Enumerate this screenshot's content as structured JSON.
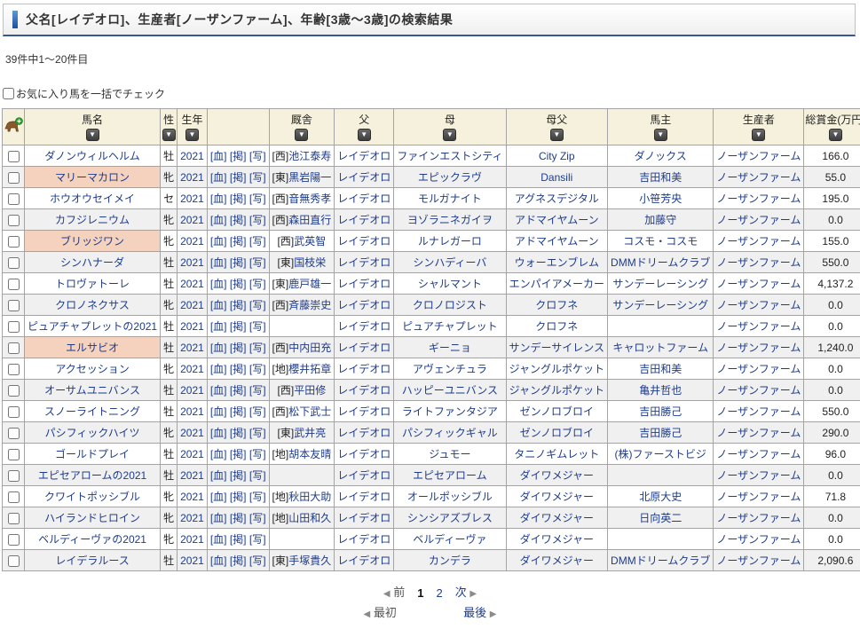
{
  "header": {
    "title": "父名[レイデオロ]、生産者[ノーザンファーム]、年齢[3歳～3歳]の検索結果"
  },
  "summary": {
    "count_text": "39件中1～20件目"
  },
  "bulk_check": {
    "label": "お気に入り馬を一括でチェック"
  },
  "colors": {
    "link_blue": "#1e3c8c",
    "header_cream": "#f5f1dc",
    "favorite_pink": "#f4d2bd",
    "zebra_gray": "#f0f0f0",
    "accent_blue": "#1c4e9e"
  },
  "icons": {
    "add_horse": "horse-with-green-plus-icon",
    "filter": "down-triangle-filter-button"
  },
  "table": {
    "columns": [
      {
        "key": "check",
        "label": "",
        "filter": false
      },
      {
        "key": "name",
        "label": "馬名",
        "filter": true
      },
      {
        "key": "sex",
        "label": "性",
        "filter": true
      },
      {
        "key": "year",
        "label": "生年",
        "filter": true
      },
      {
        "key": "links",
        "label": "",
        "filter": false
      },
      {
        "key": "stable",
        "label": "厩舎",
        "filter": true
      },
      {
        "key": "sire",
        "label": "父",
        "filter": true
      },
      {
        "key": "dam",
        "label": "母",
        "filter": true
      },
      {
        "key": "damsire",
        "label": "母父",
        "filter": true
      },
      {
        "key": "owner",
        "label": "馬主",
        "filter": true
      },
      {
        "key": "breeder",
        "label": "生産者",
        "filter": true
      },
      {
        "key": "prize",
        "label": "総賞金(万円)",
        "filter": true
      }
    ],
    "link_labels": [
      "[血]",
      "[掲]",
      "[写]"
    ],
    "rows": [
      {
        "name": "ダノンウィルヘルム",
        "favorite": false,
        "sex": "牡",
        "year": "2021",
        "stable_prefix": "[西]",
        "stable": "池江泰寿",
        "sire": "レイデオロ",
        "dam": "ファインエストシティ",
        "damsire": "City Zip",
        "owner": "ダノックス",
        "breeder": "ノーザンファーム",
        "prize": "166.0"
      },
      {
        "name": "マリーマカロン",
        "favorite": true,
        "sex": "牝",
        "year": "2021",
        "stable_prefix": "[東]",
        "stable": "黒岩陽一",
        "sire": "レイデオロ",
        "dam": "エピックラヴ",
        "damsire": "Dansili",
        "owner": "吉田和美",
        "breeder": "ノーザンファーム",
        "prize": "55.0"
      },
      {
        "name": "ホウオウセイメイ",
        "favorite": false,
        "sex": "セ",
        "year": "2021",
        "stable_prefix": "[西]",
        "stable": "音無秀孝",
        "sire": "レイデオロ",
        "dam": "モルガナイト",
        "damsire": "アグネスデジタル",
        "owner": "小笹芳央",
        "breeder": "ノーザンファーム",
        "prize": "195.0"
      },
      {
        "name": "カフジレニウム",
        "favorite": false,
        "sex": "牝",
        "year": "2021",
        "stable_prefix": "[西]",
        "stable": "森田直行",
        "sire": "レイデオロ",
        "dam": "ヨゾラニネガイヲ",
        "damsire": "アドマイヤムーン",
        "owner": "加藤守",
        "breeder": "ノーザンファーム",
        "prize": "0.0"
      },
      {
        "name": "ブリッジワン",
        "favorite": true,
        "sex": "牝",
        "year": "2021",
        "stable_prefix": "[西]",
        "stable": "武英智",
        "sire": "レイデオロ",
        "dam": "ルナレガーロ",
        "damsire": "アドマイヤムーン",
        "owner": "コスモ・コスモ",
        "breeder": "ノーザンファーム",
        "prize": "155.0"
      },
      {
        "name": "シンハナーダ",
        "favorite": false,
        "sex": "牡",
        "year": "2021",
        "stable_prefix": "[東]",
        "stable": "国枝栄",
        "sire": "レイデオロ",
        "dam": "シンハディーバ",
        "damsire": "ウォーエンブレム",
        "owner": "DMMドリームクラブ",
        "breeder": "ノーザンファーム",
        "prize": "550.0"
      },
      {
        "name": "トロヴァトーレ",
        "favorite": false,
        "sex": "牡",
        "year": "2021",
        "stable_prefix": "[東]",
        "stable": "鹿戸雄一",
        "sire": "レイデオロ",
        "dam": "シャルマント",
        "damsire": "エンパイアメーカー",
        "owner": "サンデーレーシング",
        "breeder": "ノーザンファーム",
        "prize": "4,137.2"
      },
      {
        "name": "クロノネクサス",
        "favorite": false,
        "sex": "牝",
        "year": "2021",
        "stable_prefix": "[西]",
        "stable": "斉藤崇史",
        "sire": "レイデオロ",
        "dam": "クロノロジスト",
        "damsire": "クロフネ",
        "owner": "サンデーレーシング",
        "breeder": "ノーザンファーム",
        "prize": "0.0"
      },
      {
        "name": "ピュアチャプレットの2021",
        "favorite": false,
        "sex": "牡",
        "year": "2021",
        "stable_prefix": "",
        "stable": "",
        "sire": "レイデオロ",
        "dam": "ピュアチャプレット",
        "damsire": "クロフネ",
        "owner": "",
        "breeder": "ノーザンファーム",
        "prize": "0.0"
      },
      {
        "name": "エルサビオ",
        "favorite": true,
        "sex": "牡",
        "year": "2021",
        "stable_prefix": "[西]",
        "stable": "中内田充",
        "sire": "レイデオロ",
        "dam": "ギーニョ",
        "damsire": "サンデーサイレンス",
        "owner": "キャロットファーム",
        "breeder": "ノーザンファーム",
        "prize": "1,240.0"
      },
      {
        "name": "アクセッション",
        "favorite": false,
        "sex": "牝",
        "year": "2021",
        "stable_prefix": "[地]",
        "stable": "櫻井拓章",
        "sire": "レイデオロ",
        "dam": "アヴェンチュラ",
        "damsire": "ジャングルポケット",
        "owner": "吉田和美",
        "breeder": "ノーザンファーム",
        "prize": "0.0"
      },
      {
        "name": "オーサムユニバンス",
        "favorite": false,
        "sex": "牡",
        "year": "2021",
        "stable_prefix": "[西]",
        "stable": "平田修",
        "sire": "レイデオロ",
        "dam": "ハッピーユニバンス",
        "damsire": "ジャングルポケット",
        "owner": "亀井哲也",
        "breeder": "ノーザンファーム",
        "prize": "0.0"
      },
      {
        "name": "スノーライトニング",
        "favorite": false,
        "sex": "牡",
        "year": "2021",
        "stable_prefix": "[西]",
        "stable": "松下武士",
        "sire": "レイデオロ",
        "dam": "ライトファンタジア",
        "damsire": "ゼンノロブロイ",
        "owner": "吉田勝己",
        "breeder": "ノーザンファーム",
        "prize": "550.0"
      },
      {
        "name": "パシフィックハイツ",
        "favorite": false,
        "sex": "牝",
        "year": "2021",
        "stable_prefix": "[東]",
        "stable": "武井亮",
        "sire": "レイデオロ",
        "dam": "パシフィックギャル",
        "damsire": "ゼンノロブロイ",
        "owner": "吉田勝己",
        "breeder": "ノーザンファーム",
        "prize": "290.0"
      },
      {
        "name": "ゴールドプレイ",
        "favorite": false,
        "sex": "牡",
        "year": "2021",
        "stable_prefix": "[地]",
        "stable": "胡本友晴",
        "sire": "レイデオロ",
        "dam": "ジュモー",
        "damsire": "タニノギムレット",
        "owner": "(株)ファーストビジ",
        "breeder": "ノーザンファーム",
        "prize": "96.0"
      },
      {
        "name": "エピセアロームの2021",
        "favorite": false,
        "sex": "牡",
        "year": "2021",
        "stable_prefix": "",
        "stable": "",
        "sire": "レイデオロ",
        "dam": "エピセアローム",
        "damsire": "ダイワメジャー",
        "owner": "",
        "breeder": "ノーザンファーム",
        "prize": "0.0"
      },
      {
        "name": "クワイトポッシブル",
        "favorite": false,
        "sex": "牝",
        "year": "2021",
        "stable_prefix": "[地]",
        "stable": "秋田大助",
        "sire": "レイデオロ",
        "dam": "オールポッシブル",
        "damsire": "ダイワメジャー",
        "owner": "北原大史",
        "breeder": "ノーザンファーム",
        "prize": "71.8"
      },
      {
        "name": "ハイランドヒロイン",
        "favorite": false,
        "sex": "牝",
        "year": "2021",
        "stable_prefix": "[地]",
        "stable": "山田和久",
        "sire": "レイデオロ",
        "dam": "シンシアズブレス",
        "damsire": "ダイワメジャー",
        "owner": "日向英二",
        "breeder": "ノーザンファーム",
        "prize": "0.0"
      },
      {
        "name": "ベルディーヴァの2021",
        "favorite": false,
        "sex": "牝",
        "year": "2021",
        "stable_prefix": "",
        "stable": "",
        "sire": "レイデオロ",
        "dam": "ベルディーヴァ",
        "damsire": "ダイワメジャー",
        "owner": "",
        "breeder": "ノーザンファーム",
        "prize": "0.0"
      },
      {
        "name": "レイデラルース",
        "favorite": false,
        "sex": "牡",
        "year": "2021",
        "stable_prefix": "[東]",
        "stable": "手塚貴久",
        "sire": "レイデオロ",
        "dam": "カンデラ",
        "damsire": "ダイワメジャー",
        "owner": "DMMドリームクラブ",
        "breeder": "ノーザンファーム",
        "prize": "2,090.6"
      }
    ]
  },
  "pagination": {
    "left_arrow": "◀",
    "right_arrow": "▶",
    "prev": "前",
    "next": "次",
    "current_page": "1",
    "page2": "2",
    "first": "最初",
    "last": "最後"
  }
}
